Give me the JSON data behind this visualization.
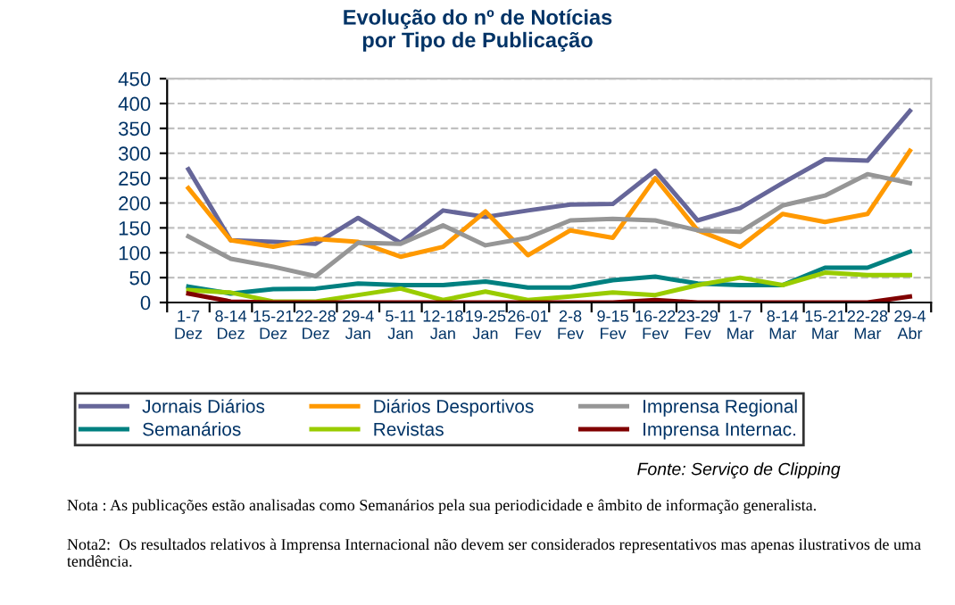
{
  "chart_data": {
    "type": "line",
    "title": "Evolução do nº de Notícias\npor Tipo de Publicação",
    "categories": [
      "1-7\nDez",
      "8-14\nDez",
      "15-21\nDez",
      "22-28\nDez",
      "29-4\nJan",
      "5-11\nJan",
      "12-18\nJan",
      "19-25\nJan",
      "26-01\nFev",
      "2-8\nFev",
      "9-15\nFev",
      "16-22\nFev",
      "23-29\nFev",
      "1-7\nMar",
      "8-14\nMar",
      "15-21\nMar",
      "22-28\nMar",
      "29-4\nAbr"
    ],
    "series": [
      {
        "name": "Jornais Diários",
        "color": "#666699",
        "values": [
          268,
          125,
          122,
          118,
          170,
          120,
          185,
          172,
          185,
          197,
          198,
          265,
          165,
          190,
          240,
          288,
          285,
          385
        ]
      },
      {
        "name": "Diários Desportivos",
        "color": "#ff9900",
        "values": [
          230,
          125,
          112,
          128,
          122,
          92,
          112,
          183,
          95,
          145,
          130,
          250,
          145,
          112,
          178,
          162,
          178,
          305
        ]
      },
      {
        "name": "Imprensa Regional",
        "color": "#969696",
        "values": [
          133,
          88,
          72,
          53,
          120,
          118,
          155,
          115,
          130,
          165,
          168,
          165,
          145,
          142,
          195,
          215,
          258,
          240
        ]
      },
      {
        "name": "Semanários",
        "color": "#008080",
        "values": [
          32,
          18,
          27,
          28,
          38,
          35,
          35,
          42,
          30,
          30,
          45,
          52,
          38,
          35,
          35,
          70,
          70,
          102
        ]
      },
      {
        "name": "Revistas",
        "color": "#99cc00",
        "values": [
          25,
          20,
          2,
          2,
          15,
          28,
          5,
          22,
          5,
          12,
          20,
          15,
          35,
          50,
          35,
          60,
          55,
          55
        ]
      },
      {
        "name": "Imprensa Internac.",
        "color": "#800000",
        "values": [
          18,
          2,
          0,
          0,
          0,
          0,
          0,
          0,
          0,
          0,
          0,
          5,
          0,
          0,
          0,
          0,
          0,
          12
        ]
      }
    ],
    "ylim": [
      0,
      450
    ],
    "yticks": [
      0,
      50,
      100,
      150,
      200,
      250,
      300,
      350,
      400,
      450
    ],
    "grid": "y",
    "legend": "bottom",
    "line_style": "solid",
    "marker": "none",
    "annotations": [
      "Fonte: Serviço de Clipping",
      "Nota : As publicações estão analisadas como Semanários pela sua periodicidade e âmbito de informação generalista.",
      "Nota2:  Os resultados relativos à Imprensa Internacional não devem ser considerados representativos mas apenas ilustrativos de uma tendência."
    ]
  }
}
